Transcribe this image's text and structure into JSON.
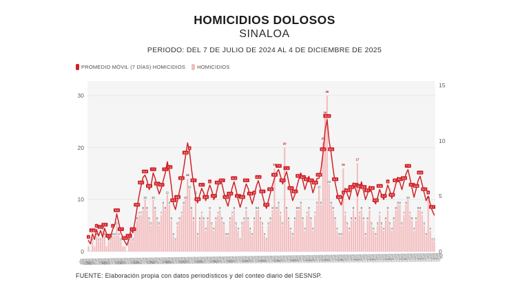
{
  "header": {
    "title": "HOMICIDIOS DOLOSOS",
    "subtitle": "SINALOA",
    "period": "PERIODO: DEL 7 DE JULIO DE 2024 AL 4 DE DICIEMBRE DE 2025"
  },
  "legend": {
    "items": [
      {
        "label": "PROMEDIO MÓVIL (7 DÍAS) HOMICIDIOS",
        "color": "#cf2127"
      },
      {
        "label": "HOMICIDIOS",
        "color": "#f4bcbe"
      }
    ]
  },
  "footer": {
    "source": "FUENTE: Elaboración propia con datos periodísticos y del conteo diario del SESNSP."
  },
  "chart_data": {
    "type": "bar",
    "title": "HOMICIDIOS DOLOSOS - SINALOA",
    "xlabel": "",
    "ylabel": "",
    "x_start": "2024-07-07",
    "x_end": "2025-12-04",
    "sample_every_days": 3,
    "grid": "horizontal",
    "legend_position": "top-left",
    "left_axis": {
      "ticks": [
        0,
        10,
        20,
        30
      ],
      "max": 30,
      "applies_to": "HOMICIDIOS"
    },
    "right_axis": {
      "ticks": [
        0,
        5,
        10,
        15
      ],
      "max": 15,
      "applies_to": "PROMEDIO MÓVIL (7 DÍAS) HOMICIDIOS"
    },
    "notable_daily_peaks": [
      16,
      20,
      30,
      16,
      17
    ],
    "series": [
      {
        "name": "HOMICIDIOS",
        "type": "bar",
        "axis": "left",
        "color": "#f4bcbe",
        "label_color": "#3a3a3a",
        "highlight_label_color": "#b2171c",
        "values": [
          1,
          0,
          2,
          1,
          3,
          2,
          2,
          4,
          3,
          1,
          2,
          2,
          3,
          3,
          5,
          3,
          2,
          1,
          1,
          0,
          2,
          3,
          2,
          4,
          6,
          7,
          7,
          8,
          10,
          8,
          6,
          5,
          10,
          8,
          6,
          5,
          7,
          9,
          8,
          11,
          9,
          6,
          3,
          2,
          5,
          6,
          7,
          9,
          10,
          14,
          12,
          8,
          6,
          11,
          3,
          6,
          7,
          6,
          4,
          6,
          8,
          5,
          4,
          6,
          7,
          8,
          6,
          5,
          3,
          3,
          6,
          7,
          8,
          5,
          4,
          2,
          5,
          6,
          8,
          6,
          4,
          3,
          6,
          8,
          8,
          6,
          5,
          3,
          2,
          5,
          6,
          8,
          16,
          8,
          9,
          7,
          5,
          20,
          8,
          6,
          4,
          3,
          6,
          8,
          8,
          9,
          6,
          4,
          7,
          8,
          6,
          4,
          7,
          9,
          12,
          9,
          21,
          26,
          30,
          13,
          9,
          8,
          6,
          4,
          3,
          3,
          16,
          7,
          5,
          4,
          6,
          8,
          6,
          17,
          7,
          8,
          6,
          3,
          6,
          8,
          5,
          4,
          3,
          5,
          7,
          5,
          4,
          6,
          8,
          5,
          4,
          6,
          8,
          9,
          9,
          5,
          7,
          9,
          10,
          7,
          6,
          4,
          6,
          8,
          8,
          7,
          5,
          3,
          10,
          4,
          2,
          2
        ]
      },
      {
        "name": "PROMEDIO MÓVIL (7 DÍAS) HOMICIDIOS",
        "type": "line",
        "axis": "right",
        "color": "#cf2127",
        "values": [
          1,
          0.7,
          1.6,
          1.1,
          2,
          1.4,
          1.9,
          1.3,
          2.1,
          1.6,
          1.1,
          1.4,
          2,
          2.4,
          3.4,
          2.6,
          1.7,
          1.3,
          0.9,
          0.57,
          1.1,
          2,
          1.7,
          2.7,
          3.9,
          5,
          5.9,
          6.7,
          6.9,
          6.4,
          5.6,
          6,
          7.1,
          6.6,
          5.8,
          5.2,
          5.7,
          6.4,
          7.1,
          8.1,
          7.3,
          5.9,
          4.3,
          3.8,
          4.6,
          5.4,
          6.3,
          7.4,
          8.6,
          9.8,
          9,
          7.4,
          6.1,
          5,
          4.4,
          5.1,
          5.7,
          5.3,
          4.6,
          5.4,
          6,
          5.5,
          4.7,
          5.1,
          5.9,
          6.5,
          6.1,
          5.3,
          4.6,
          4.1,
          4.9,
          5.7,
          6.3,
          5.6,
          4.7,
          4,
          4.6,
          5.4,
          6.1,
          5.7,
          4.9,
          4.3,
          5,
          5.9,
          6.4,
          5.7,
          5.1,
          4.4,
          3.9,
          4.6,
          5.3,
          6,
          6.6,
          7.1,
          7.4,
          6.8,
          6.1,
          6.7,
          7.2,
          6.3,
          5.4,
          4.6,
          5.1,
          5.8,
          6.5,
          7.1,
          6.4,
          5.6,
          6.2,
          6.8,
          6.1,
          5.3,
          5.9,
          6.6,
          6.6,
          7.4,
          8.9,
          10.9,
          11.9,
          10,
          8.9,
          7.4,
          6.2,
          5.3,
          4.6,
          4.2,
          5,
          5.7,
          5.2,
          4.7,
          5.5,
          6.2,
          5.7,
          5,
          5.6,
          6.3,
          5.5,
          4.7,
          5.2,
          5.9,
          5.4,
          4.7,
          4.3,
          4.9,
          5.6,
          5.1,
          4.7,
          5.3,
          6,
          5.5,
          4.8,
          5.4,
          6.1,
          6.7,
          6.2,
          5.6,
          6.3,
          7,
          7.4,
          6.6,
          5.7,
          4.9,
          5.6,
          6.4,
          6.8,
          6.1,
          5.3,
          4.6,
          5,
          4.3,
          3.7,
          3.3
        ]
      }
    ]
  }
}
